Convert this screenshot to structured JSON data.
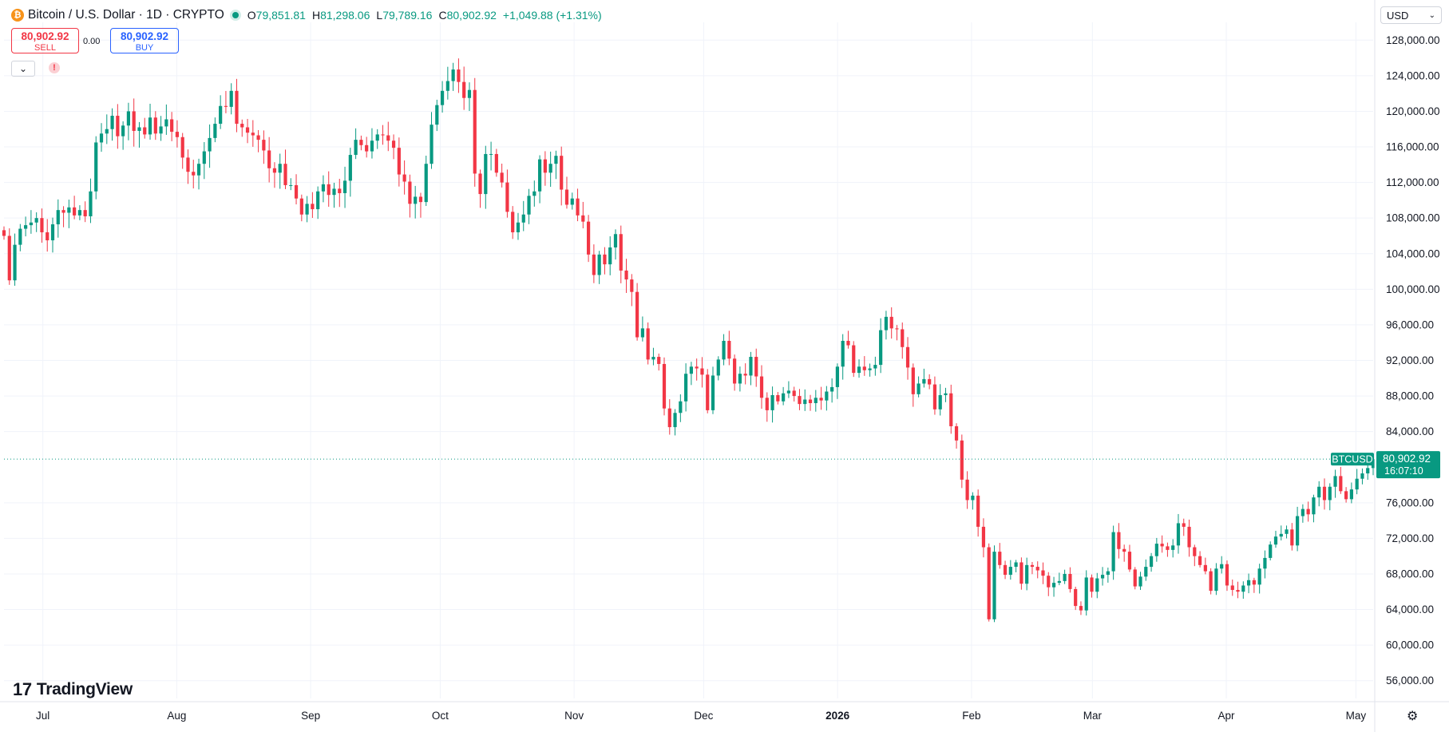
{
  "header": {
    "symbol_title": "Bitcoin / U.S. Dollar · 1D · CRYPTO",
    "open_label": "O",
    "open": "79,851.81",
    "high_label": "H",
    "high": "81,298.06",
    "low_label": "L",
    "low": "79,789.16",
    "close_label": "C",
    "close": "80,902.92",
    "change": "+1,049.88 (+1.31%)",
    "coin_icon": "bitcoin-icon"
  },
  "trade": {
    "sell_price": "80,902.92",
    "sell_label": "SELL",
    "buy_price": "80,902.92",
    "buy_label": "BUY",
    "spread": "0.00"
  },
  "currency_select": "USD",
  "logo_text": "TradingView",
  "colors": {
    "up": "#089981",
    "down": "#f23645",
    "grid": "#f0f3fa",
    "text": "#131722"
  },
  "chart_data": {
    "type": "candlestick",
    "interval": "1D",
    "ylim": [
      54000,
      130000
    ],
    "y_ticks": [
      "56,000.00",
      "60,000.00",
      "64,000.00",
      "68,000.00",
      "72,000.00",
      "76,000.00",
      "84,000.00",
      "88,000.00",
      "92,000.00",
      "96,000.00",
      "100,000.00",
      "104,000.00",
      "108,000.00",
      "112,000.00",
      "116,000.00",
      "120,000.00",
      "124,000.00",
      "128,000.00"
    ],
    "x_ticks": [
      {
        "label": "Jul",
        "date": "2025-07-01"
      },
      {
        "label": "Aug",
        "date": "2025-08-01"
      },
      {
        "label": "Sep",
        "date": "2025-09-01"
      },
      {
        "label": "Oct",
        "date": "2025-10-01"
      },
      {
        "label": "Nov",
        "date": "2025-11-01"
      },
      {
        "label": "Dec",
        "date": "2025-12-01"
      },
      {
        "label": "2026",
        "date": "2026-01-01",
        "bold": true
      },
      {
        "label": "Feb",
        "date": "2026-02-01"
      },
      {
        "label": "Mar",
        "date": "2026-03-01"
      },
      {
        "label": "Apr",
        "date": "2026-04-01"
      },
      {
        "label": "May",
        "date": "2026-05-01"
      }
    ],
    "start_date": "2025-06-22",
    "end_date": "2026-05-05",
    "last_price": {
      "symbol": "BTCUSD",
      "value": 80902.92,
      "label": "80,902.92",
      "countdown": "16:07:10"
    },
    "closes": [
      106000,
      101000,
      105000,
      106800,
      107200,
      107500,
      108000,
      106400,
      105500,
      107300,
      108900,
      108600,
      109200,
      108300,
      108900,
      108200,
      111000,
      116500,
      117500,
      118000,
      119500,
      117200,
      118400,
      120000,
      117800,
      118200,
      117400,
      119300,
      117500,
      118300,
      119100,
      117700,
      117100,
      114800,
      113200,
      112800,
      114100,
      115500,
      117000,
      118600,
      120600,
      120500,
      122300,
      118600,
      118200,
      117600,
      117300,
      116800,
      115600,
      113600,
      113100,
      114100,
      111700,
      111700,
      110200,
      108400,
      109600,
      109000,
      111000,
      111800,
      110600,
      111300,
      110800,
      112200,
      115100,
      116800,
      116200,
      115500,
      116700,
      117400,
      117300,
      116700,
      115900,
      112900,
      112100,
      109600,
      110400,
      109800,
      114100,
      118500,
      120700,
      122300,
      123400,
      124700,
      123300,
      121500,
      122400,
      113000,
      110700,
      115200,
      115200,
      113100,
      112000,
      108700,
      106400,
      107500,
      108400,
      110500,
      111000,
      114600,
      113100,
      114100,
      115000,
      111200,
      109500,
      110200,
      108300,
      107600,
      103900,
      101600,
      103900,
      102800,
      104700,
      106200,
      102100,
      101100,
      99700,
      94600,
      95600,
      92100,
      92400,
      91600,
      86600,
      84500,
      86100,
      87400,
      90500,
      91300,
      91100,
      90400,
      86400,
      90300,
      92100,
      94200,
      92200,
      89400,
      90500,
      90300,
      92400,
      90200,
      87800,
      86400,
      88100,
      87400,
      88300,
      88600,
      88000,
      87100,
      87600,
      87200,
      87800,
      87500,
      88500,
      89000,
      91300,
      94200,
      93700,
      90600,
      91300,
      90900,
      91100,
      91500,
      95400,
      96900,
      95600,
      95500,
      93500,
      91200,
      88200,
      89400,
      89900,
      89300,
      86500,
      88100,
      88300,
      84600,
      83000,
      78600,
      76300,
      76800,
      73300,
      71000,
      62900,
      70500,
      69000,
      67900,
      68800,
      69300,
      66900,
      69000,
      68800,
      68400,
      67800,
      66500,
      67000,
      67200,
      68000,
      66300,
      64400,
      63900,
      67600,
      66000,
      67500,
      67900,
      68300,
      72700,
      70800,
      70500,
      68500,
      66600,
      67700,
      68800,
      70000,
      71400,
      71100,
      70700,
      71200,
      73700,
      73300,
      71000,
      70000,
      69000,
      68300,
      66100,
      68600,
      69100,
      66700,
      66200,
      66000,
      66700,
      67300,
      66800,
      68600,
      69800,
      71300,
      72200,
      72500,
      73000,
      71200,
      74500,
      75300,
      74700,
      76600,
      77800,
      76300,
      77800,
      79000,
      77300,
      76400,
      77500,
      78700,
      79300,
      79900,
      80900
    ]
  }
}
